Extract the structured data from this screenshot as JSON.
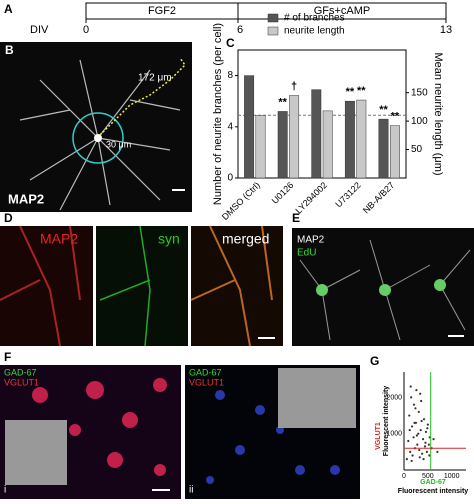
{
  "timeline": {
    "panel_label": "A",
    "axis_label": "DIV",
    "ticks": [
      "0",
      "6",
      "13"
    ],
    "phases": [
      "FGF2",
      "GFs+cAMP"
    ]
  },
  "panels": {
    "B": {
      "panel_label": "B",
      "stain": "MAP2",
      "length_label": "172 μm",
      "radius_label": "30 μm"
    },
    "C": {
      "panel_label": "C"
    },
    "D": {
      "panel_label": "D",
      "channels": [
        "MAP2",
        "syn",
        "merged"
      ]
    },
    "E": {
      "panel_label": "E",
      "stains": [
        "MAP2",
        "EdU"
      ]
    },
    "F": {
      "panel_label": "F",
      "stains": [
        "GAD-67",
        "VGLUT1"
      ],
      "subpanels": [
        "i",
        "ii"
      ]
    },
    "G": {
      "panel_label": "G"
    }
  },
  "chart_data": [
    {
      "type": "bar",
      "categories": [
        "DMSO (Ctrl)",
        "U0126",
        "LY294002",
        "U73122",
        "NB-A/B27"
      ],
      "y_label": "Number of neurite branches (per cell)",
      "y2_label": "Mean neurite length (μm)",
      "ylim": [
        0,
        10
      ],
      "yticks": [
        0,
        4,
        8
      ],
      "y2lim": [
        0,
        225
      ],
      "y2ticks": [
        50,
        100,
        150
      ],
      "ref_line": 4.9,
      "series": [
        {
          "name": "# of branches",
          "color": "#555555",
          "values": [
            8.0,
            5.2,
            6.9,
            6.0,
            4.6
          ],
          "markers": [
            null,
            "**",
            null,
            "**",
            "**"
          ]
        },
        {
          "name": "neurite length",
          "color": "#c8c8c8",
          "axis": "y2",
          "values": [
            110,
            145,
            118,
            137,
            92
          ],
          "markers": [
            null,
            "†",
            null,
            "**",
            "**"
          ]
        }
      ]
    },
    {
      "type": "scatter",
      "x_label": "Fluorescent intensity",
      "x_label_prefix": "GAD-67",
      "y_label": "Fluorescent intensity",
      "y_label_prefix": "VGLUT1",
      "xlim": [
        0,
        1300
      ],
      "xticks": [
        0,
        500,
        1000
      ],
      "ylim": [
        0,
        2700
      ],
      "yticks": [
        1000,
        2000
      ],
      "threshold_x": 560,
      "threshold_y": 600,
      "x": [
        60,
        90,
        110,
        130,
        150,
        170,
        180,
        200,
        210,
        230,
        250,
        260,
        280,
        300,
        310,
        330,
        350,
        360,
        380,
        400,
        420,
        440,
        460,
        480,
        500,
        520,
        540,
        120,
        160,
        220,
        270,
        320,
        370,
        410,
        450,
        490,
        530,
        580,
        620,
        700,
        140,
        240,
        340
      ],
      "y": [
        300,
        800,
        1500,
        500,
        2000,
        1200,
        400,
        900,
        1800,
        600,
        1300,
        2200,
        700,
        1000,
        1600,
        350,
        1100,
        1900,
        450,
        850,
        1400,
        650,
        1050,
        500,
        1250,
        700,
        900,
        1100,
        250,
        1300,
        950,
        550,
        1350,
        300,
        750,
        1150,
        400,
        600,
        850,
        500,
        2300,
        1700,
        2100
      ]
    }
  ]
}
